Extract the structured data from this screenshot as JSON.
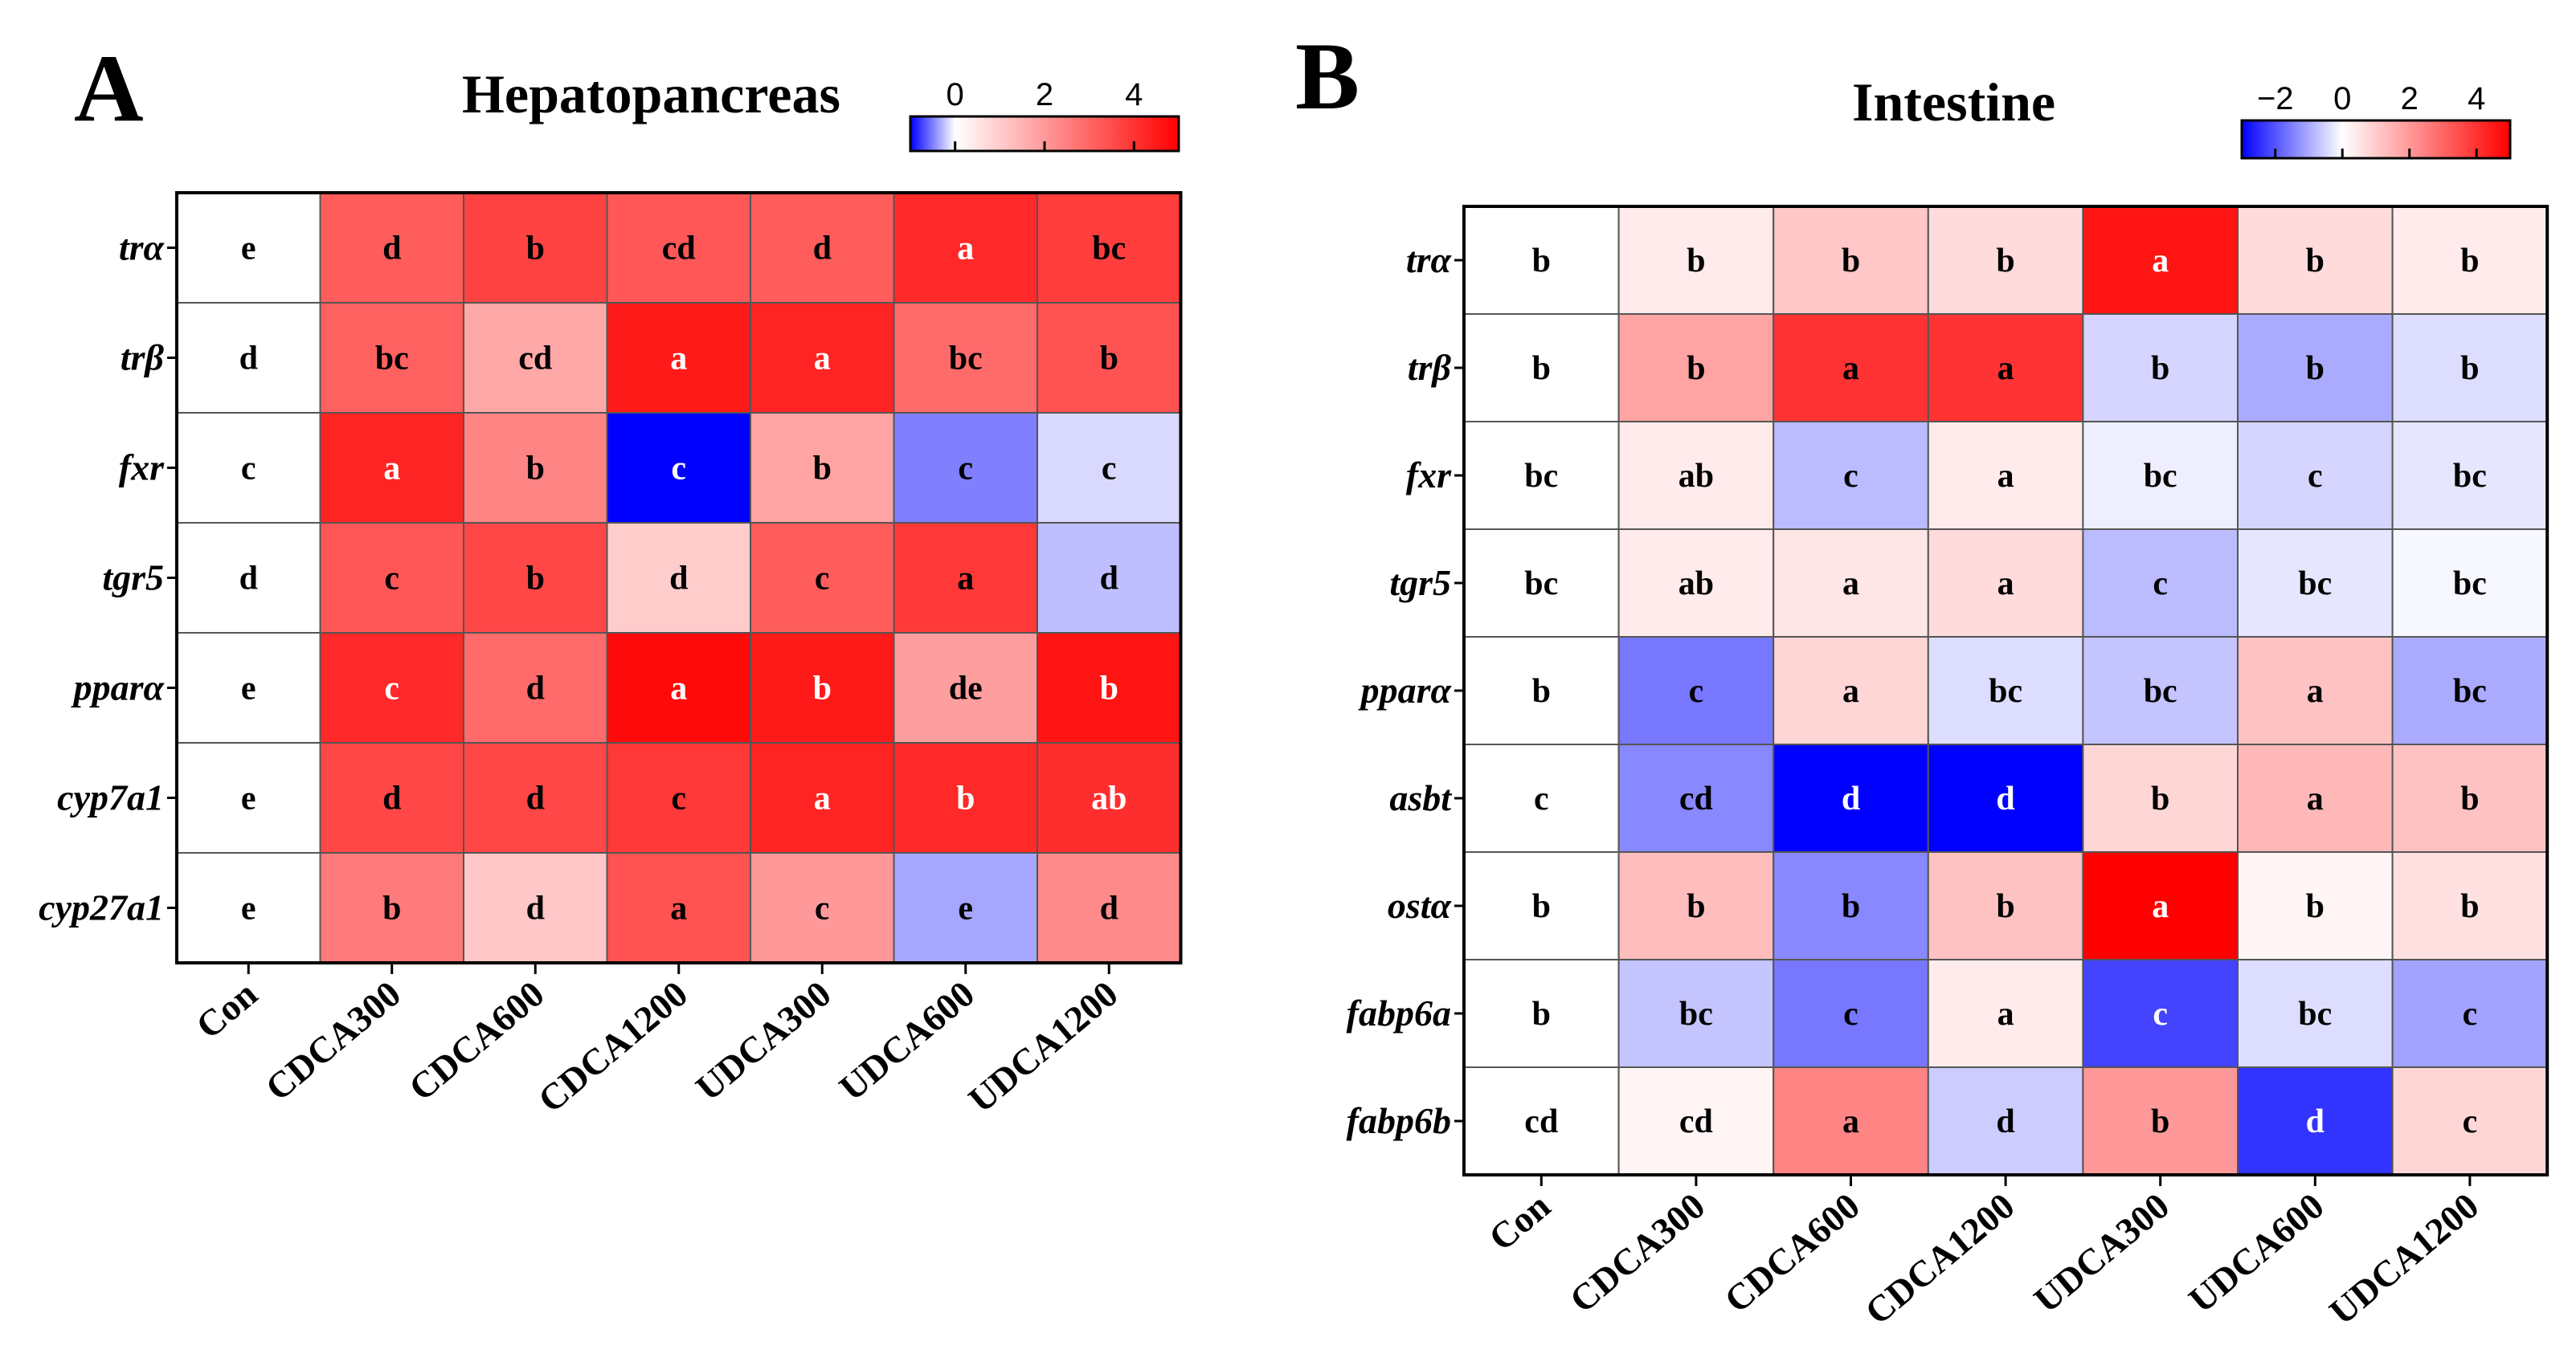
{
  "colors": {
    "low": "#0000ff",
    "mid": "#ffffff",
    "high": "#ff0000",
    "grid": "#555555",
    "frame": "#000000"
  },
  "chart_data": [
    {
      "type": "heatmap",
      "panel": "A",
      "title": "Hepatopancreas",
      "scale_ticks": [
        "0",
        "2",
        "4"
      ],
      "color_range": [
        -1,
        5
      ],
      "columns": [
        "Con",
        "CDCA300",
        "CDCA600",
        "CDCA1200",
        "UDCA300",
        "UDCA600",
        "UDCA1200"
      ],
      "rows": [
        "trα",
        "trβ",
        "fxr",
        "tgr5",
        "pparα",
        "cyp7a1",
        "cyp27a1"
      ],
      "values": [
        [
          0,
          3.2,
          3.7,
          3.3,
          3.2,
          4.2,
          3.8
        ],
        [
          0,
          3.1,
          1.7,
          4.5,
          4.3,
          2.9,
          3.4
        ],
        [
          0,
          4.3,
          2.4,
          -1.0,
          1.8,
          -0.5,
          -0.15
        ],
        [
          0,
          3.3,
          3.6,
          1.0,
          3.2,
          3.9,
          -0.25
        ],
        [
          0,
          4.2,
          2.9,
          4.8,
          4.5,
          1.9,
          4.6
        ],
        [
          0,
          3.6,
          3.6,
          3.9,
          4.3,
          4.2,
          4.1
        ],
        [
          0,
          2.6,
          1.1,
          3.4,
          2.0,
          -0.35,
          2.3
        ]
      ],
      "letters": [
        [
          "e",
          "d",
          "b",
          "cd",
          "d",
          "a",
          "bc"
        ],
        [
          "d",
          "bc",
          "cd",
          "a",
          "a",
          "bc",
          "b"
        ],
        [
          "c",
          "a",
          "b",
          "c",
          "b",
          "c",
          "c"
        ],
        [
          "d",
          "c",
          "b",
          "d",
          "c",
          "a",
          "d"
        ],
        [
          "e",
          "c",
          "d",
          "a",
          "b",
          "de",
          "b"
        ],
        [
          "e",
          "d",
          "d",
          "c",
          "a",
          "b",
          "ab"
        ],
        [
          "e",
          "b",
          "d",
          "a",
          "c",
          "e",
          "d"
        ]
      ]
    },
    {
      "type": "heatmap",
      "panel": "B",
      "title": "Intestine",
      "scale_ticks": [
        "−2",
        "0",
        "2",
        "4"
      ],
      "color_range": [
        -3,
        5
      ],
      "columns": [
        "Con",
        "CDCA300",
        "CDCA600",
        "CDCA1200",
        "UDCA300",
        "UDCA600",
        "UDCA1200"
      ],
      "rows": [
        "trα",
        "trβ",
        "fxr",
        "tgr5",
        "pparα",
        "asbt",
        "ostα",
        "fabp6a",
        "fabp6b"
      ],
      "values": [
        [
          0,
          0.4,
          1.1,
          0.7,
          4.6,
          0.7,
          0.4
        ],
        [
          0,
          1.8,
          4.0,
          4.0,
          -0.5,
          -1.0,
          -0.4
        ],
        [
          0,
          0.4,
          -0.8,
          0.4,
          -0.2,
          -0.5,
          -0.3
        ],
        [
          0,
          0.4,
          0.5,
          0.7,
          -0.8,
          -0.3,
          -0.1
        ],
        [
          0,
          -1.6,
          0.8,
          -0.4,
          -0.7,
          1.2,
          -1.0
        ],
        [
          0,
          -1.4,
          -3.0,
          -3.0,
          0.8,
          1.4,
          1.2
        ],
        [
          0,
          1.3,
          -1.4,
          1.2,
          5.0,
          0.2,
          0.6
        ],
        [
          0,
          -0.7,
          -1.6,
          0.4,
          -2.2,
          -0.4,
          -1.1
        ],
        [
          0,
          0.2,
          2.4,
          -0.6,
          2.0,
          -2.4,
          0.8
        ]
      ],
      "letters": [
        [
          "b",
          "b",
          "b",
          "b",
          "a",
          "b",
          "b"
        ],
        [
          "b",
          "b",
          "a",
          "a",
          "b",
          "b",
          "b"
        ],
        [
          "bc",
          "ab",
          "c",
          "a",
          "bc",
          "c",
          "bc"
        ],
        [
          "bc",
          "ab",
          "a",
          "a",
          "c",
          "bc",
          "bc"
        ],
        [
          "b",
          "c",
          "a",
          "bc",
          "bc",
          "a",
          "bc"
        ],
        [
          "c",
          "cd",
          "d",
          "d",
          "b",
          "a",
          "b"
        ],
        [
          "b",
          "b",
          "b",
          "b",
          "a",
          "b",
          "b"
        ],
        [
          "b",
          "bc",
          "c",
          "a",
          "c",
          "bc",
          "c"
        ],
        [
          "cd",
          "cd",
          "a",
          "d",
          "b",
          "d",
          "c"
        ]
      ]
    }
  ]
}
